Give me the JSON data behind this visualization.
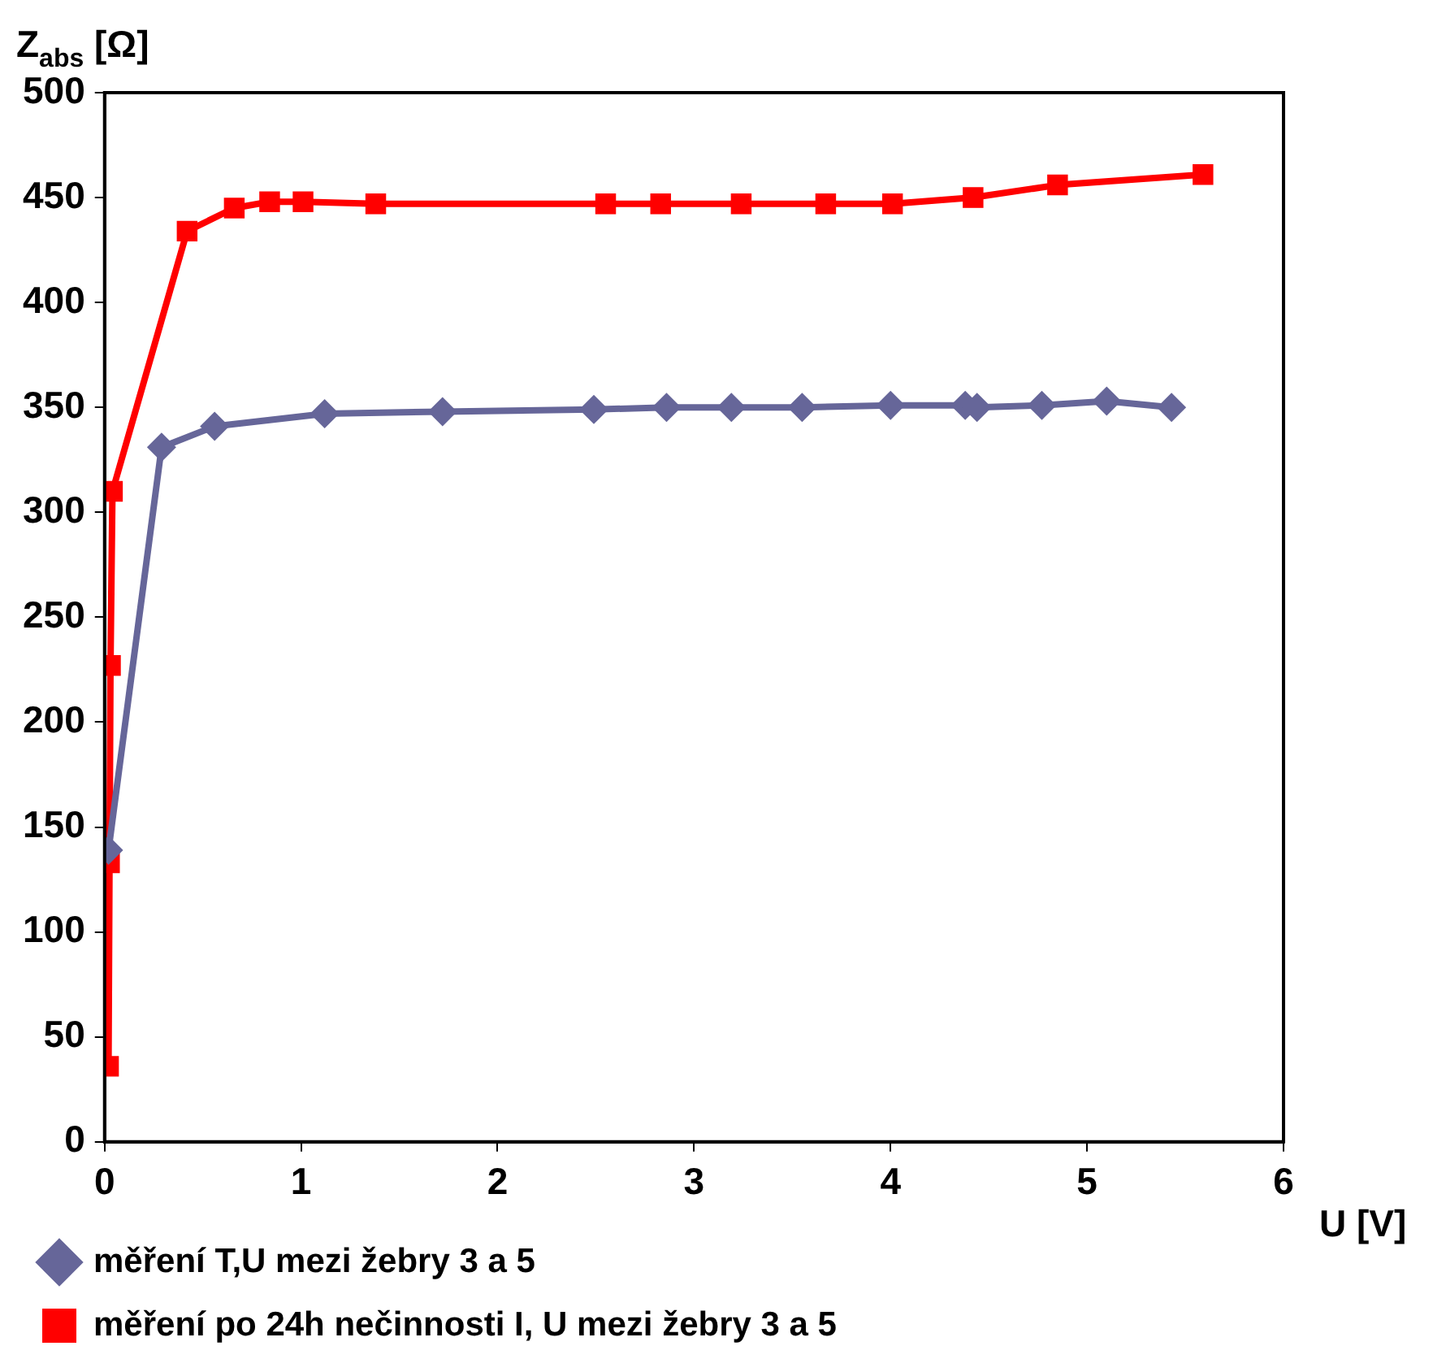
{
  "chart_data": {
    "type": "line",
    "xlabel": "U [V]",
    "ylabel": "Z$_{abs}$ [Ω]",
    "xlim": [
      0,
      6
    ],
    "xticks": [
      0,
      1,
      2,
      3,
      4,
      5,
      6
    ],
    "ylim": [
      0,
      500
    ],
    "yticks": [
      0,
      50,
      100,
      150,
      200,
      250,
      300,
      350,
      400,
      450,
      500
    ],
    "grid": false,
    "legend": "bottom",
    "series": [
      {
        "name": "měření T,U mezi žebry 3 a 5",
        "color": "#666699",
        "marker": "diamond",
        "x": [
          0.02,
          0.29,
          0.56,
          1.12,
          1.72,
          2.49,
          2.86,
          3.19,
          3.55,
          4.0,
          4.38,
          4.44,
          4.77,
          5.1,
          5.43
        ],
        "values": [
          139,
          331,
          341,
          347,
          348,
          349,
          350,
          350,
          350,
          351,
          351,
          350,
          351,
          353,
          350
        ]
      },
      {
        "name": "měření po 24h nečinnosti I, U mezi žebry 3 a 5",
        "color": "#ff0000",
        "marker": "square",
        "x": [
          0.02,
          0.025,
          0.03,
          0.04,
          0.42,
          0.66,
          0.84,
          1.01,
          1.38,
          2.55,
          2.83,
          3.24,
          3.67,
          4.01,
          4.42,
          4.85,
          5.59
        ],
        "values": [
          36,
          133,
          227,
          310,
          434,
          445,
          448,
          448,
          447,
          447,
          447,
          447,
          447,
          447,
          450,
          456,
          461
        ]
      }
    ]
  }
}
